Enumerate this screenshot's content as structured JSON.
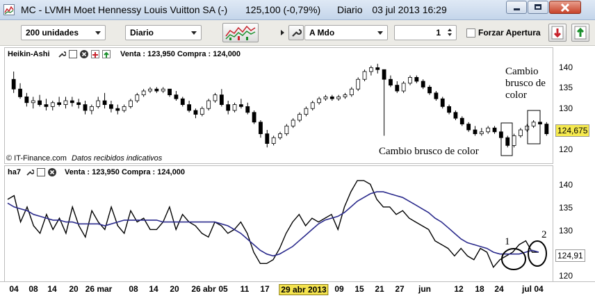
{
  "window": {
    "title": "MC - LVMH Moet Hennessy Louis Vuitton SA (-)",
    "price_info": "125,100 (-0,79%)",
    "period": "Diario",
    "datetime": "03 jul 2013 16:29"
  },
  "toolbar": {
    "quantity_value": "200 unidades",
    "timeframe_value": "Diario",
    "order_type_value": "A Mdo",
    "quantity_spinner": "1",
    "force_open_label": "Forzar Apertura"
  },
  "panel1": {
    "title": "Heikin-Ashi",
    "quote": "Venta : 123,950 Compra : 124,000",
    "copyright": "© IT-Finance.com",
    "notice": "Datos recibidos indicativos",
    "annotation_top": [
      "Cambio",
      "brusco de",
      "color"
    ],
    "annotation_bottom": "Cambio brusco de color",
    "y_ticks": [
      "140",
      "135",
      "130",
      "125",
      "120"
    ],
    "last_price": "124,675",
    "last_price_color": "#f5e94e"
  },
  "panel2": {
    "title": "ha7",
    "quote": "Venta : 123,950 Compra : 124,000",
    "annotation_1": "1",
    "annotation_2": "2",
    "y_ticks": [
      "140",
      "135",
      "130",
      "125",
      "120"
    ],
    "last_value": "124,91"
  },
  "x_axis": {
    "labels": [
      "04",
      "08",
      "14",
      "20",
      "26 mar",
      "08",
      "14",
      "20",
      "26 abr",
      "05",
      "11",
      "17",
      "29 abr 2013",
      "09",
      "15",
      "21",
      "27",
      "jun",
      "12",
      "18",
      "24",
      "jul",
      "04"
    ],
    "highlighted": "29 abr 2013"
  },
  "colors": {
    "line_price": "#000000",
    "line_ma": "#2a2a8c",
    "candle_bull": "#ffffff",
    "candle_bear": "#000000"
  },
  "chart_data": [
    {
      "type": "candlestick",
      "title": "Heikin-Ashi",
      "ylim": [
        118,
        143
      ],
      "yticks": [
        120,
        125,
        130,
        135,
        140
      ],
      "ohlc": [
        [
          138.5,
          140.5,
          135,
          136
        ],
        [
          136,
          137.5,
          133.5,
          134
        ],
        [
          134,
          135,
          131.5,
          132.5
        ],
        [
          132.5,
          134,
          131,
          133
        ],
        [
          133,
          134.5,
          131.5,
          132
        ],
        [
          132,
          133.5,
          130.5,
          131.5
        ],
        [
          131.5,
          133,
          130.5,
          132.5
        ],
        [
          132.5,
          134,
          131.5,
          132
        ],
        [
          132,
          134,
          131,
          133
        ],
        [
          133,
          134,
          131.5,
          132.5
        ],
        [
          132.5,
          133.5,
          131,
          132
        ],
        [
          132,
          133,
          129.5,
          130.5
        ],
        [
          130.5,
          132,
          129.5,
          131.5
        ],
        [
          131.5,
          134,
          131,
          133
        ],
        [
          133,
          135,
          131,
          132
        ],
        [
          132,
          133,
          130,
          131
        ],
        [
          131,
          132,
          129.5,
          130.5
        ],
        [
          130.5,
          132,
          130,
          131.5
        ],
        [
          131.5,
          133.5,
          131,
          133
        ],
        [
          133,
          135,
          132.5,
          134.5
        ],
        [
          134.5,
          136,
          134,
          135.5
        ],
        [
          135.5,
          136.5,
          135,
          136
        ],
        [
          136,
          136.5,
          135,
          135.5
        ],
        [
          135.5,
          136.5,
          135,
          136
        ],
        [
          136,
          136,
          134,
          134.5
        ],
        [
          134.5,
          135.5,
          133,
          133.5
        ],
        [
          133.5,
          134,
          131.5,
          132
        ],
        [
          132,
          133,
          130,
          130.5
        ],
        [
          130.5,
          131,
          128.5,
          129.5
        ],
        [
          129.5,
          131.5,
          129,
          131
        ],
        [
          131,
          133.5,
          130.5,
          133
        ],
        [
          133,
          135,
          132.5,
          134.5
        ],
        [
          134.5,
          136,
          131.5,
          132
        ],
        [
          132,
          133,
          129.5,
          130.5
        ],
        [
          130.5,
          132.5,
          130,
          132
        ],
        [
          132,
          133.5,
          131,
          131.5
        ],
        [
          131.5,
          132.5,
          129.5,
          130
        ],
        [
          130,
          130.5,
          127,
          127.5
        ],
        [
          127.5,
          128,
          123.5,
          124.5
        ],
        [
          124.5,
          125.5,
          121,
          122
        ],
        [
          122,
          124,
          121.5,
          123.5
        ],
        [
          123.5,
          125,
          123,
          124.5
        ],
        [
          124.5,
          127,
          124,
          126.5
        ],
        [
          126.5,
          128.5,
          126,
          128
        ],
        [
          128,
          130,
          127.5,
          129.5
        ],
        [
          129.5,
          131.5,
          129,
          131
        ],
        [
          131,
          133,
          130.5,
          132.5
        ],
        [
          132.5,
          134,
          132,
          133.5
        ],
        [
          133.5,
          134.5,
          133,
          134
        ],
        [
          134,
          134.5,
          133,
          133.5
        ],
        [
          133.5,
          134.5,
          133,
          134
        ],
        [
          134,
          135,
          133.5,
          134.5
        ],
        [
          134.5,
          136.5,
          134,
          136
        ],
        [
          136,
          139,
          135.5,
          138.5
        ],
        [
          138.5,
          141,
          138,
          140.5
        ],
        [
          140.5,
          142,
          139.5,
          141.5
        ],
        [
          141.5,
          142.5,
          140,
          141
        ],
        [
          141,
          141,
          124,
          138.5
        ],
        [
          138.5,
          139.5,
          136.5,
          137
        ],
        [
          137,
          138,
          135,
          135.5
        ],
        [
          135.5,
          138,
          135,
          137.5
        ],
        [
          137.5,
          139.5,
          137,
          139
        ],
        [
          139,
          139.5,
          137.5,
          138
        ],
        [
          138,
          138.5,
          136,
          136.5
        ],
        [
          136.5,
          137,
          134.5,
          135
        ],
        [
          135,
          135.5,
          133,
          133.5
        ],
        [
          133.5,
          134,
          131,
          131.5
        ],
        [
          131.5,
          132,
          129.5,
          130
        ],
        [
          130,
          130.5,
          128,
          128.5
        ],
        [
          128.5,
          129,
          126.5,
          127
        ],
        [
          127,
          127.5,
          125,
          125.5
        ],
        [
          125.5,
          126.5,
          124,
          124.5
        ],
        [
          124.5,
          126,
          124,
          125
        ],
        [
          125,
          126.5,
          124.5,
          126
        ],
        [
          126,
          126.5,
          124.5,
          125
        ],
        [
          125,
          125.5,
          123,
          123.5
        ],
        [
          123.5,
          124,
          121,
          121.5
        ],
        [
          121.5,
          124.5,
          121,
          124
        ],
        [
          124,
          126,
          123.5,
          125.5
        ],
        [
          125.5,
          127,
          125,
          126.5
        ],
        [
          126.5,
          128,
          126,
          127.5
        ],
        [
          127.5,
          128.5,
          126.5,
          127
        ],
        [
          127,
          127.5,
          124,
          124.5
        ]
      ]
    },
    {
      "type": "line",
      "title": "ha7",
      "ylim": [
        118,
        146
      ],
      "yticks": [
        120,
        125,
        130,
        135,
        140
      ],
      "series": [
        {
          "values": [
            139,
            140,
            133,
            137,
            132,
            130,
            135,
            131,
            134,
            130,
            137,
            132,
            129,
            136,
            133,
            131,
            137,
            132,
            130,
            136,
            133,
            134,
            131,
            131,
            133,
            137,
            131,
            135,
            133,
            132,
            130,
            129,
            133,
            132,
            130,
            131,
            133,
            130,
            125,
            122,
            122,
            123,
            126,
            130,
            133,
            135,
            132,
            134,
            133,
            134,
            135,
            131,
            137,
            141,
            144,
            144,
            143,
            139,
            137,
            137,
            135,
            136,
            134,
            133,
            132,
            131,
            128,
            127,
            126,
            124,
            126,
            124,
            123,
            126,
            125,
            121,
            123,
            124,
            125,
            127,
            128,
            125,
            125
          ]
        },
        {
          "values": [
            138,
            137,
            136.5,
            136,
            135,
            134.5,
            134,
            133.5,
            133.5,
            133,
            133,
            132.5,
            132.5,
            132.5,
            132.5,
            132,
            132.5,
            133,
            133.5,
            133.5,
            133.5,
            133.5,
            133.5,
            133.5,
            133,
            133,
            133,
            133,
            133,
            133,
            133,
            133,
            133,
            132.5,
            132,
            131,
            130,
            128.5,
            127,
            125.5,
            124.5,
            124,
            124.5,
            125.5,
            126.5,
            128,
            129.5,
            131,
            132.5,
            133.5,
            134,
            134.5,
            135.5,
            137,
            138.5,
            139.5,
            140.5,
            141,
            141,
            140.5,
            140,
            139.5,
            138.5,
            137.5,
            136.5,
            135.5,
            134,
            133,
            131.5,
            130,
            128.5,
            127.5,
            127,
            126.5,
            126,
            125,
            124.5,
            124.5,
            124.5,
            124.5,
            125,
            125.5,
            125
          ]
        }
      ]
    }
  ]
}
